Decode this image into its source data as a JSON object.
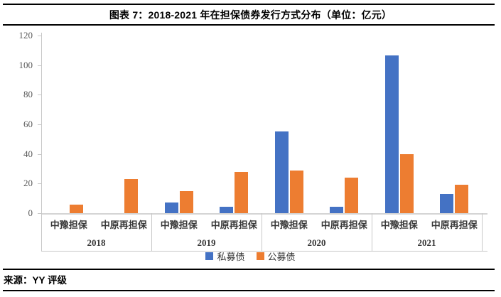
{
  "page": {
    "header": {
      "title": "图表 7：2018-2021 年在担保债券发行方式分布（单位：亿元）"
    },
    "footer": {
      "source": "来源：YY 评级"
    }
  },
  "chart_data": {
    "type": "bar",
    "title": "图表 7：2018-2021 年在担保债券发行方式分布（单位：亿元）",
    "unit": "亿元",
    "xlabel": "",
    "ylabel": "",
    "ylim": [
      0,
      120
    ],
    "y_ticks": [
      0,
      20,
      40,
      60,
      80,
      100,
      120
    ],
    "grid": false,
    "legend_position": "bottom-center",
    "series": [
      {
        "key": "private",
        "name": "私募债",
        "color": "#4472C4"
      },
      {
        "key": "public",
        "name": "公募债",
        "color": "#ED7D31"
      }
    ],
    "groups": [
      {
        "year": "2018",
        "items": [
          {
            "label": "中豫担保",
            "private": 0,
            "public": 6
          },
          {
            "label": "中原再担保",
            "private": 0,
            "public": 23
          }
        ]
      },
      {
        "year": "2019",
        "items": [
          {
            "label": "中豫担保",
            "private": 7,
            "public": 15
          },
          {
            "label": "中原再担保",
            "private": 4.5,
            "public": 28
          }
        ]
      },
      {
        "year": "2020",
        "items": [
          {
            "label": "中豫担保",
            "private": 55,
            "public": 29
          },
          {
            "label": "中原再担保",
            "private": 4.5,
            "public": 24
          }
        ]
      },
      {
        "year": "2021",
        "items": [
          {
            "label": "中豫担保",
            "private": 106.5,
            "public": 40
          },
          {
            "label": "中原再担保",
            "private": 13,
            "public": 19
          }
        ]
      }
    ],
    "axis_color": "#C8C8C8",
    "baseline_color": "#D4D4D4",
    "tick_label_color": "#595959",
    "category_label_color": "#383838"
  }
}
